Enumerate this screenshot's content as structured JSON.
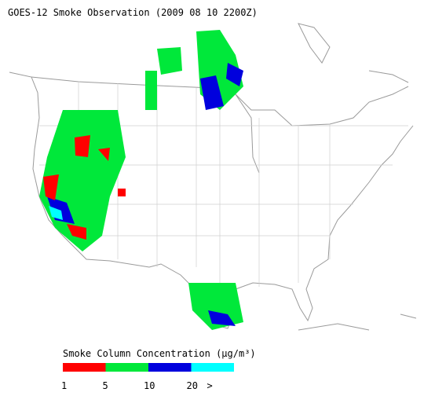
{
  "header": {
    "title": "GOES-12 Smoke Observation (2009 08 10  2200Z)"
  },
  "legend": {
    "label": "Smoke Column Concentration (µg/m³)",
    "colors": [
      "#ff0000",
      "#00e83a",
      "#0000dd",
      "#00ffff"
    ],
    "tick_labels": [
      "1",
      "5",
      "10",
      "20",
      ">"
    ]
  }
}
